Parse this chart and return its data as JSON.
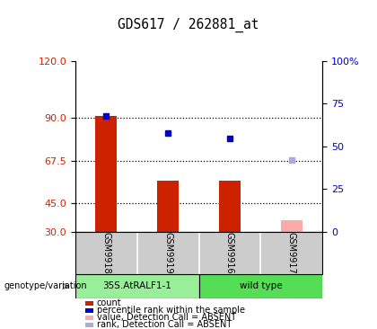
{
  "title": "GDS617 / 262881_at",
  "samples": [
    "GSM9918",
    "GSM9919",
    "GSM9916",
    "GSM9917"
  ],
  "bar_values": [
    91,
    57,
    57,
    null
  ],
  "bar_color": "#cc2200",
  "absent_bar_value": 36,
  "absent_bar_color": "#ffaaaa",
  "dot_values": [
    91,
    82,
    79,
    null
  ],
  "dot_color": "#0000cc",
  "absent_dot_value": 68,
  "absent_dot_color": "#aaaadd",
  "ymin": 30,
  "ymax": 120,
  "yticks_left": [
    30,
    45,
    67.5,
    90,
    120
  ],
  "yticks_right": [
    0,
    25,
    50,
    75,
    100
  ],
  "hlines": [
    90,
    67.5,
    45
  ],
  "group1_label": "35S.AtRALF1-1",
  "group2_label": "wild type",
  "group1_color": "#99ee99",
  "group2_color": "#55dd55",
  "legend_items": [
    {
      "label": "count",
      "color": "#cc2200"
    },
    {
      "label": "percentile rank within the sample",
      "color": "#0000cc"
    },
    {
      "label": "value, Detection Call = ABSENT",
      "color": "#ffaaaa"
    },
    {
      "label": "rank, Detection Call = ABSENT",
      "color": "#aaaadd"
    }
  ],
  "bar_width": 0.35,
  "bg_color": "#ffffff",
  "title_fontsize": 10.5,
  "left_tick_color": "#cc2200",
  "right_tick_color": "#0000cc",
  "sample_box_color": "#cccccc",
  "genotype_label": "genotype/variation"
}
